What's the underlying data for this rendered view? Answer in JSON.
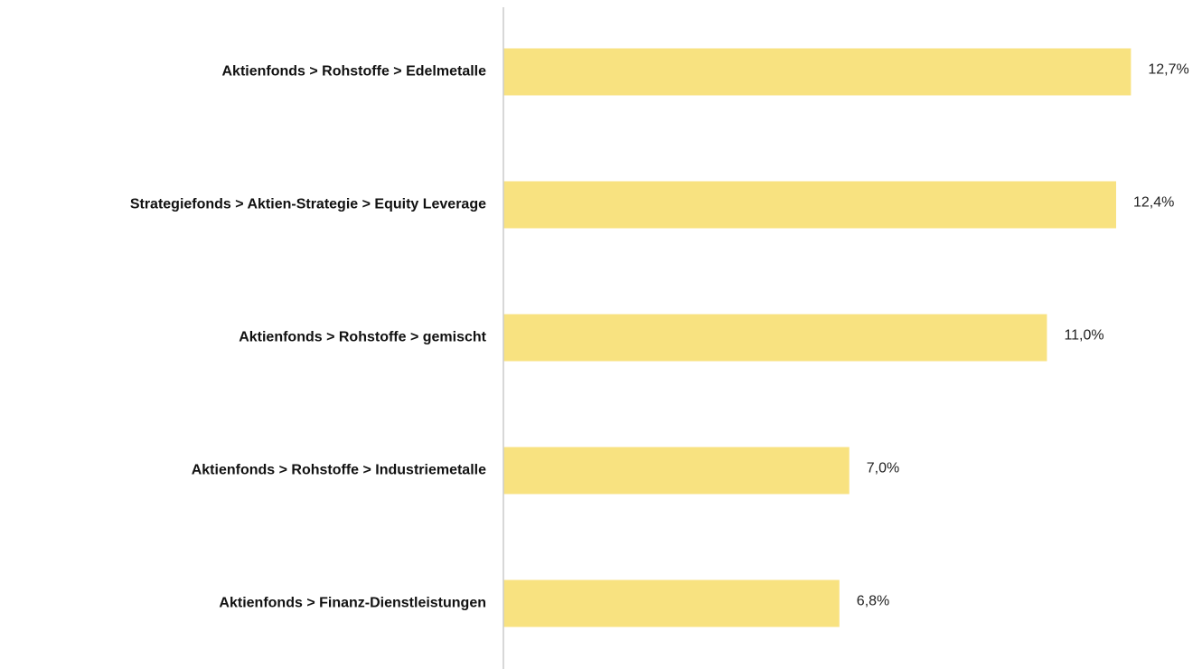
{
  "chart_data": {
    "type": "barh",
    "categories": [
      "Aktienfonds > Rohstoffe > Edelmetalle",
      "Strategiefonds > Aktien-Strategie > Equity Leverage",
      "Aktienfonds > Rohstoffe > gemischt",
      "Aktienfonds > Rohstoffe > Industriemetalle",
      "Aktienfonds > Finanz-Dienstleistungen"
    ],
    "values": [
      12.7,
      12.4,
      11.0,
      7.0,
      6.8
    ],
    "value_labels": [
      "12,7%",
      "12,4%",
      "11,0%",
      "7,0%",
      "6,8%"
    ],
    "color": "#f8e280",
    "xlim": [
      0,
      13.9
    ]
  }
}
